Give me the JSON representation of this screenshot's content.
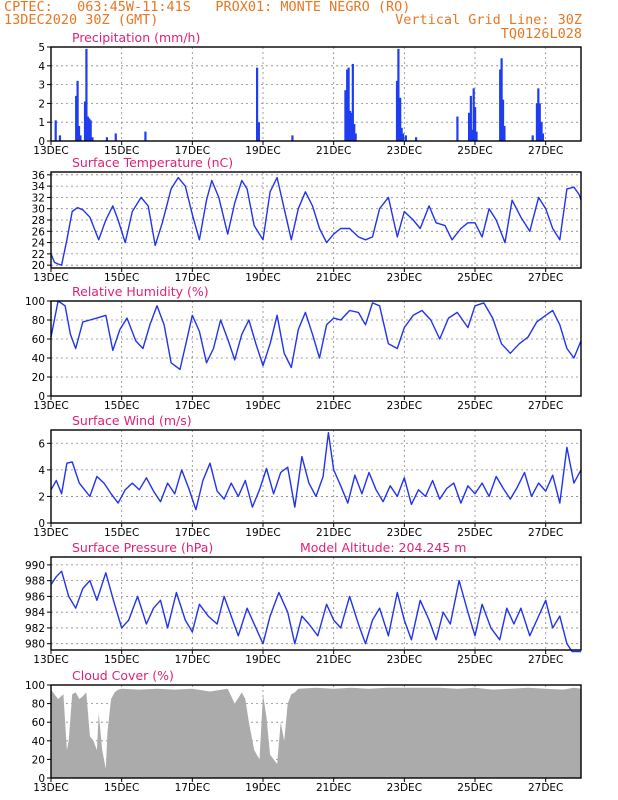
{
  "header": {
    "line1": "CPTEC:   063:45W-11:41S   PROX01: MONTE NEGRO (RO)",
    "line2": "13DEC2020 30Z (GMT)",
    "vertical_grid": "Vertical Grid Line: 30Z",
    "code": "TQ0126L028"
  },
  "colors": {
    "title": "#e0207a",
    "header": "#e87722",
    "series": "#2233ee",
    "bars": "#1f3df0",
    "cloud": "#ababab",
    "grid": "#888888"
  },
  "chart_data": [
    {
      "type": "bar",
      "title": "Precipitation (mm/h)",
      "ylim": [
        0,
        5
      ],
      "yticks": [
        0,
        1,
        2,
        3,
        4,
        5
      ],
      "x_range": [
        13.0,
        28.0
      ],
      "xticks": [
        13,
        15,
        17,
        19,
        21,
        23,
        25,
        27
      ],
      "xtick_labels": [
        "13DEC",
        "15DEC",
        "17DEC",
        "19DEC",
        "21DEC",
        "23DEC",
        "25DEC",
        "27DEC"
      ],
      "bars": [
        [
          13.13,
          1.1
        ],
        [
          13.25,
          0.3
        ],
        [
          13.71,
          2.4
        ],
        [
          13.75,
          3.2
        ],
        [
          13.79,
          0.8
        ],
        [
          13.83,
          0.3
        ],
        [
          13.96,
          2.1
        ],
        [
          14.0,
          4.9
        ],
        [
          14.04,
          1.3
        ],
        [
          14.08,
          1.2
        ],
        [
          14.12,
          1.1
        ],
        [
          14.17,
          0.2
        ],
        [
          14.58,
          0.2
        ],
        [
          14.83,
          0.4
        ],
        [
          15.67,
          0.5
        ],
        [
          18.83,
          3.9
        ],
        [
          18.88,
          1.0
        ],
        [
          19.83,
          0.3
        ],
        [
          21.33,
          2.7
        ],
        [
          21.38,
          3.8
        ],
        [
          21.42,
          3.9
        ],
        [
          21.46,
          1.6
        ],
        [
          21.5,
          1.5
        ],
        [
          21.54,
          4.1
        ],
        [
          21.58,
          0.9
        ],
        [
          21.62,
          0.4
        ],
        [
          22.79,
          3.2
        ],
        [
          22.83,
          4.9
        ],
        [
          22.88,
          2.3
        ],
        [
          22.92,
          0.7
        ],
        [
          22.96,
          0.4
        ],
        [
          23.04,
          0.3
        ],
        [
          23.33,
          0.2
        ],
        [
          24.5,
          1.3
        ],
        [
          24.83,
          1.5
        ],
        [
          24.88,
          2.4
        ],
        [
          24.92,
          0.6
        ],
        [
          24.96,
          2.8
        ],
        [
          25.0,
          1.8
        ],
        [
          25.04,
          0.5
        ],
        [
          25.71,
          3.8
        ],
        [
          25.75,
          4.4
        ],
        [
          25.79,
          2.2
        ],
        [
          25.83,
          0.8
        ],
        [
          26.63,
          0.3
        ],
        [
          26.75,
          2.0
        ],
        [
          26.79,
          2.8
        ],
        [
          26.83,
          2.0
        ],
        [
          26.88,
          1.0
        ],
        [
          26.92,
          0.4
        ]
      ]
    },
    {
      "type": "line",
      "title": "Surface Temperature (nC)",
      "ylim": [
        19.5,
        36.5
      ],
      "yticks": [
        20,
        22,
        24,
        26,
        28,
        30,
        32,
        34,
        36
      ],
      "x_range": [
        13.0,
        28.0
      ],
      "xticks": [
        13,
        15,
        17,
        19,
        21,
        23,
        25,
        27
      ],
      "xtick_labels": [
        "13DEC",
        "15DEC",
        "17DEC",
        "19DEC",
        "21DEC",
        "23DEC",
        "25DEC",
        "27DEC"
      ],
      "x": [
        13.0,
        13.1,
        13.2,
        13.3,
        13.45,
        13.6,
        13.75,
        13.9,
        14.1,
        14.35,
        14.55,
        14.75,
        14.9,
        15.1,
        15.3,
        15.55,
        15.75,
        15.95,
        16.15,
        16.4,
        16.6,
        16.8,
        17.0,
        17.2,
        17.4,
        17.55,
        17.75,
        18.0,
        18.2,
        18.4,
        18.55,
        18.75,
        19.0,
        19.2,
        19.4,
        19.6,
        19.8,
        20.0,
        20.2,
        20.4,
        20.6,
        20.8,
        21.0,
        21.2,
        21.45,
        21.7,
        21.9,
        22.1,
        22.3,
        22.55,
        22.8,
        23.0,
        23.25,
        23.45,
        23.7,
        23.9,
        24.15,
        24.35,
        24.6,
        24.8,
        25.0,
        25.2,
        25.4,
        25.6,
        25.85,
        26.05,
        26.3,
        26.55,
        26.8,
        27.0,
        27.2,
        27.4,
        27.6,
        27.8,
        27.95,
        28.0
      ],
      "y": [
        22.0,
        20.5,
        20.2,
        20.0,
        24.5,
        29.5,
        30.2,
        29.8,
        28.5,
        24.5,
        28.0,
        30.5,
        28.0,
        24.0,
        29.5,
        32.0,
        30.5,
        23.5,
        27.5,
        33.5,
        35.5,
        34.0,
        29.0,
        24.5,
        31.5,
        35.0,
        32.0,
        25.5,
        31.0,
        35.0,
        33.5,
        27.0,
        24.5,
        33.0,
        35.5,
        30.0,
        24.5,
        30.0,
        33.0,
        30.5,
        26.5,
        24.0,
        25.5,
        26.5,
        26.5,
        25.0,
        24.5,
        25.0,
        30.0,
        32.0,
        25.0,
        29.5,
        28.0,
        26.5,
        30.5,
        27.5,
        27.0,
        24.5,
        26.5,
        27.5,
        27.5,
        25.0,
        30.0,
        28.0,
        24.0,
        31.5,
        28.5,
        26.0,
        32.0,
        30.0,
        26.5,
        24.5,
        33.5,
        33.8,
        32.5,
        31.5
      ]
    },
    {
      "type": "line",
      "title": "Relative Humidity (%)",
      "ylim": [
        0,
        100
      ],
      "yticks": [
        0,
        20,
        40,
        60,
        80,
        100
      ],
      "x_range": [
        13.0,
        28.0
      ],
      "xticks": [
        13,
        15,
        17,
        19,
        21,
        23,
        25,
        27
      ],
      "xtick_labels": [
        "13DEC",
        "15DEC",
        "17DEC",
        "19DEC",
        "21DEC",
        "23DEC",
        "25DEC",
        "27DEC"
      ],
      "x": [
        13.0,
        13.2,
        13.4,
        13.55,
        13.7,
        13.9,
        14.1,
        14.3,
        14.55,
        14.75,
        14.95,
        15.15,
        15.4,
        15.6,
        15.8,
        16.0,
        16.2,
        16.4,
        16.65,
        16.85,
        17.0,
        17.2,
        17.4,
        17.6,
        17.8,
        18.0,
        18.2,
        18.4,
        18.6,
        18.8,
        19.0,
        19.2,
        19.4,
        19.6,
        19.8,
        20.0,
        20.2,
        20.4,
        20.6,
        20.8,
        21.0,
        21.2,
        21.45,
        21.7,
        21.9,
        22.1,
        22.3,
        22.55,
        22.8,
        23.0,
        23.25,
        23.5,
        23.75,
        24.0,
        24.25,
        24.5,
        24.8,
        25.0,
        25.25,
        25.5,
        25.75,
        26.0,
        26.25,
        26.5,
        26.75,
        27.0,
        27.2,
        27.4,
        27.6,
        27.8,
        28.0
      ],
      "y": [
        62,
        100,
        95,
        65,
        50,
        78,
        80,
        82,
        85,
        48,
        70,
        82,
        58,
        50,
        75,
        95,
        75,
        35,
        28,
        60,
        85,
        68,
        35,
        50,
        80,
        60,
        38,
        65,
        80,
        55,
        32,
        55,
        85,
        45,
        30,
        70,
        88,
        65,
        40,
        75,
        82,
        80,
        90,
        88,
        75,
        98,
        95,
        55,
        50,
        72,
        85,
        90,
        80,
        60,
        82,
        88,
        72,
        95,
        98,
        82,
        55,
        45,
        55,
        62,
        78,
        85,
        90,
        75,
        50,
        40,
        58
      ]
    },
    {
      "type": "line",
      "title": "Surface Wind (m/s)",
      "ylim": [
        0,
        7
      ],
      "yticks": [
        0,
        2,
        4,
        6
      ],
      "x_range": [
        13.0,
        28.0
      ],
      "xticks": [
        13,
        15,
        17,
        19,
        21,
        23,
        25,
        27
      ],
      "xtick_labels": [
        "13DEC",
        "15DEC",
        "17DEC",
        "19DEC",
        "21DEC",
        "23DEC",
        "25DEC",
        "27DEC"
      ],
      "x": [
        13.0,
        13.15,
        13.3,
        13.45,
        13.6,
        13.8,
        13.95,
        14.1,
        14.3,
        14.5,
        14.7,
        14.9,
        15.1,
        15.3,
        15.5,
        15.7,
        15.9,
        16.1,
        16.3,
        16.5,
        16.7,
        16.9,
        17.1,
        17.3,
        17.5,
        17.7,
        17.9,
        18.1,
        18.3,
        18.5,
        18.7,
        18.9,
        19.1,
        19.3,
        19.5,
        19.7,
        19.9,
        20.1,
        20.3,
        20.5,
        20.7,
        20.85,
        21.0,
        21.2,
        21.4,
        21.6,
        21.8,
        22.0,
        22.2,
        22.4,
        22.6,
        22.8,
        23.0,
        23.2,
        23.4,
        23.6,
        23.8,
        24.0,
        24.2,
        24.4,
        24.6,
        24.8,
        25.0,
        25.2,
        25.4,
        25.6,
        25.8,
        26.0,
        26.2,
        26.4,
        26.6,
        26.8,
        27.0,
        27.2,
        27.4,
        27.6,
        27.8,
        28.0
      ],
      "y": [
        2.5,
        3.2,
        2.2,
        4.5,
        4.6,
        3.0,
        2.5,
        2.0,
        3.5,
        3.0,
        2.2,
        1.5,
        2.5,
        3.0,
        2.5,
        3.4,
        2.4,
        1.6,
        3.0,
        2.2,
        4.0,
        2.6,
        1.0,
        3.2,
        4.5,
        2.4,
        1.8,
        3.0,
        2.0,
        3.2,
        1.2,
        2.5,
        4.1,
        2.2,
        3.8,
        4.2,
        1.2,
        5.0,
        3.0,
        2.0,
        3.5,
        6.8,
        4.0,
        2.8,
        1.5,
        3.6,
        2.2,
        3.8,
        2.5,
        1.6,
        2.8,
        2.0,
        3.4,
        1.4,
        2.5,
        2.0,
        3.2,
        1.8,
        2.6,
        3.0,
        1.5,
        2.8,
        2.2,
        3.0,
        2.0,
        3.5,
        2.6,
        1.8,
        2.7,
        3.8,
        2.0,
        3.0,
        2.4,
        3.6,
        1.5,
        5.7,
        3.0,
        4.0
      ]
    },
    {
      "type": "line",
      "title": "Surface Pressure (hPa)",
      "subtitle": "Model Altitude: 204.245  m",
      "ylim": [
        979.2,
        991.0
      ],
      "yticks": [
        980,
        982,
        984,
        986,
        988,
        990
      ],
      "x_range": [
        13.0,
        28.0
      ],
      "xticks": [
        13,
        15,
        17,
        19,
        21,
        23,
        25,
        27
      ],
      "xtick_labels": [
        "13DEC",
        "15DEC",
        "17DEC",
        "19DEC",
        "21DEC",
        "23DEC",
        "25DEC",
        "27DEC"
      ],
      "x": [
        13.0,
        13.15,
        13.3,
        13.5,
        13.7,
        13.9,
        14.1,
        14.3,
        14.55,
        14.8,
        15.0,
        15.2,
        15.45,
        15.7,
        15.9,
        16.1,
        16.3,
        16.55,
        16.8,
        17.0,
        17.2,
        17.45,
        17.7,
        17.9,
        18.1,
        18.3,
        18.55,
        18.8,
        19.0,
        19.2,
        19.45,
        19.7,
        19.9,
        20.1,
        20.3,
        20.55,
        20.8,
        21.0,
        21.2,
        21.45,
        21.7,
        21.9,
        22.1,
        22.3,
        22.55,
        22.8,
        23.0,
        23.2,
        23.45,
        23.7,
        23.9,
        24.1,
        24.3,
        24.55,
        24.8,
        25.0,
        25.2,
        25.45,
        25.7,
        25.9,
        26.1,
        26.3,
        26.55,
        26.8,
        27.0,
        27.2,
        27.4,
        27.6,
        27.75,
        27.9,
        28.0
      ],
      "y": [
        987.5,
        988.5,
        989.2,
        986.0,
        984.5,
        987.0,
        988.0,
        985.5,
        989.0,
        985.0,
        982.0,
        983.0,
        986.0,
        982.5,
        984.5,
        985.5,
        982.0,
        986.5,
        983.0,
        981.5,
        985.0,
        983.5,
        982.5,
        986.0,
        983.5,
        981.0,
        984.5,
        982.0,
        980.0,
        983.5,
        986.5,
        984.0,
        980.0,
        983.5,
        982.5,
        981.0,
        985.0,
        983.0,
        982.0,
        986.0,
        982.5,
        980.0,
        983.0,
        984.5,
        981.0,
        986.5,
        983.0,
        980.5,
        985.5,
        983.0,
        980.5,
        984.0,
        982.5,
        988.0,
        984.0,
        981.0,
        985.0,
        982.0,
        980.5,
        984.5,
        982.5,
        984.5,
        981.0,
        983.5,
        985.5,
        982.0,
        983.5,
        980.0,
        979.0,
        979.0,
        979.0
      ]
    },
    {
      "type": "area",
      "title": "Cloud Cover (%)",
      "ylim": [
        0,
        100
      ],
      "yticks": [
        0,
        20,
        40,
        60,
        80,
        100
      ],
      "x_range": [
        13.0,
        28.0
      ],
      "xticks": [
        13,
        15,
        17,
        19,
        21,
        23,
        25,
        27
      ],
      "xtick_labels": [
        "13DEC",
        "15DEC",
        "17DEC",
        "19DEC",
        "21DEC",
        "23DEC",
        "25DEC",
        "27DEC"
      ],
      "x": [
        13.0,
        13.1,
        13.2,
        13.35,
        13.45,
        13.5,
        13.6,
        13.7,
        13.8,
        13.9,
        14.0,
        14.1,
        14.2,
        14.3,
        14.35,
        14.45,
        14.55,
        14.6,
        14.7,
        14.8,
        14.9,
        15.0,
        15.5,
        16.0,
        16.5,
        17.0,
        17.5,
        18.0,
        18.2,
        18.4,
        18.5,
        18.6,
        18.75,
        18.9,
        19.0,
        19.1,
        19.2,
        19.3,
        19.4,
        19.5,
        19.6,
        19.7,
        19.8,
        19.9,
        20.0,
        20.5,
        21.0,
        21.5,
        22.0,
        22.5,
        23.0,
        24.0,
        24.5,
        25.0,
        25.5,
        26.0,
        26.5,
        27.0,
        27.5,
        27.8,
        28.0
      ],
      "y": [
        95,
        90,
        85,
        90,
        30,
        40,
        90,
        92,
        85,
        88,
        92,
        45,
        40,
        30,
        70,
        30,
        10,
        50,
        85,
        92,
        95,
        96,
        95,
        96,
        95,
        96,
        93,
        96,
        80,
        92,
        85,
        60,
        30,
        20,
        90,
        65,
        25,
        20,
        15,
        60,
        40,
        80,
        90,
        92,
        96,
        97,
        96,
        97,
        96,
        97,
        97,
        97,
        96,
        97,
        95,
        96,
        97,
        96,
        95,
        97,
        96
      ]
    }
  ]
}
